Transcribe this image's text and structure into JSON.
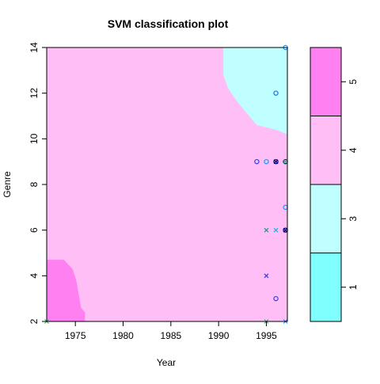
{
  "chart_data": {
    "type": "svm-classification",
    "title": "SVM classification plot",
    "xlabel": "Year",
    "ylabel": "Genre",
    "xlim": [
      1972,
      1997.2
    ],
    "ylim": [
      2,
      14
    ],
    "x_ticks": [
      {
        "value": 1975,
        "label": "1975"
      },
      {
        "value": 1980,
        "label": "1980"
      },
      {
        "value": 1985,
        "label": "1985"
      },
      {
        "value": 1990,
        "label": "1990"
      },
      {
        "value": 1995,
        "label": "1995"
      }
    ],
    "y_ticks": [
      {
        "value": 2,
        "label": "2"
      },
      {
        "value": 4,
        "label": "4"
      },
      {
        "value": 6,
        "label": "6"
      },
      {
        "value": 8,
        "label": "8"
      },
      {
        "value": 10,
        "label": "10"
      },
      {
        "value": 12,
        "label": "12"
      },
      {
        "value": 14,
        "label": "14"
      }
    ],
    "classes": [
      {
        "label": "1",
        "color": "#80ffff"
      },
      {
        "label": "3",
        "color": "#bfffff"
      },
      {
        "label": "4",
        "color": "#ffbff6"
      },
      {
        "label": "5",
        "color": "#ff80f0"
      }
    ],
    "background_class": "4",
    "regions": [
      {
        "class": "5",
        "polygon": [
          [
            1972,
            2
          ],
          [
            1972,
            4.7
          ],
          [
            1973.8,
            4.7
          ],
          [
            1974.7,
            4.3
          ],
          [
            1975.1,
            3.8
          ],
          [
            1975.6,
            2.6
          ],
          [
            1976,
            2.4
          ],
          [
            1976,
            2
          ]
        ]
      },
      {
        "class": "3",
        "polygon": [
          [
            1990.5,
            14
          ],
          [
            1990.5,
            12.8
          ],
          [
            1991,
            12.2
          ],
          [
            1992,
            11.6
          ],
          [
            1993,
            11.1
          ],
          [
            1994,
            10.6
          ],
          [
            1996,
            10.4
          ],
          [
            1997.2,
            10.2
          ],
          [
            1997.2,
            14
          ]
        ]
      }
    ],
    "legend": {
      "position": "right",
      "labels": [
        "1",
        "3",
        "4",
        "5"
      ]
    },
    "points": [
      {
        "x": 1972,
        "y": 2,
        "marker": "x",
        "color": "#3cb371"
      },
      {
        "x": 1995,
        "y": 2,
        "marker": "x",
        "color": "#3cb371"
      },
      {
        "x": 1997,
        "y": 2,
        "marker": "x",
        "color": "#1e90ff"
      },
      {
        "x": 1996,
        "y": 3,
        "marker": "o",
        "color": "#3b3bd6"
      },
      {
        "x": 1995,
        "y": 4,
        "marker": "x",
        "color": "#3b3bd6"
      },
      {
        "x": 1995,
        "y": 6,
        "marker": "x",
        "color": "#2e8b8b"
      },
      {
        "x": 1996,
        "y": 6,
        "marker": "x",
        "color": "#20b2d0"
      },
      {
        "x": 1997,
        "y": 6,
        "marker": "o",
        "color": "#000080"
      },
      {
        "x": 1997,
        "y": 6,
        "marker": "x",
        "color": "#000080"
      },
      {
        "x": 1997,
        "y": 7,
        "marker": "o",
        "color": "#1e90ff"
      },
      {
        "x": 1994,
        "y": 9,
        "marker": "o",
        "color": "#3b3bd6"
      },
      {
        "x": 1995,
        "y": 9,
        "marker": "o",
        "color": "#1e90ff"
      },
      {
        "x": 1996,
        "y": 9,
        "marker": "o",
        "color": "#000080"
      },
      {
        "x": 1996,
        "y": 9,
        "marker": "x",
        "color": "#000080"
      },
      {
        "x": 1997,
        "y": 9,
        "marker": "o",
        "color": "#000080"
      },
      {
        "x": 1997,
        "y": 9,
        "marker": "x",
        "color": "#3cb371"
      },
      {
        "x": 1996,
        "y": 12,
        "marker": "o",
        "color": "#1e6fd0"
      },
      {
        "x": 1997,
        "y": 14,
        "marker": "o",
        "color": "#1e90ff"
      }
    ]
  }
}
